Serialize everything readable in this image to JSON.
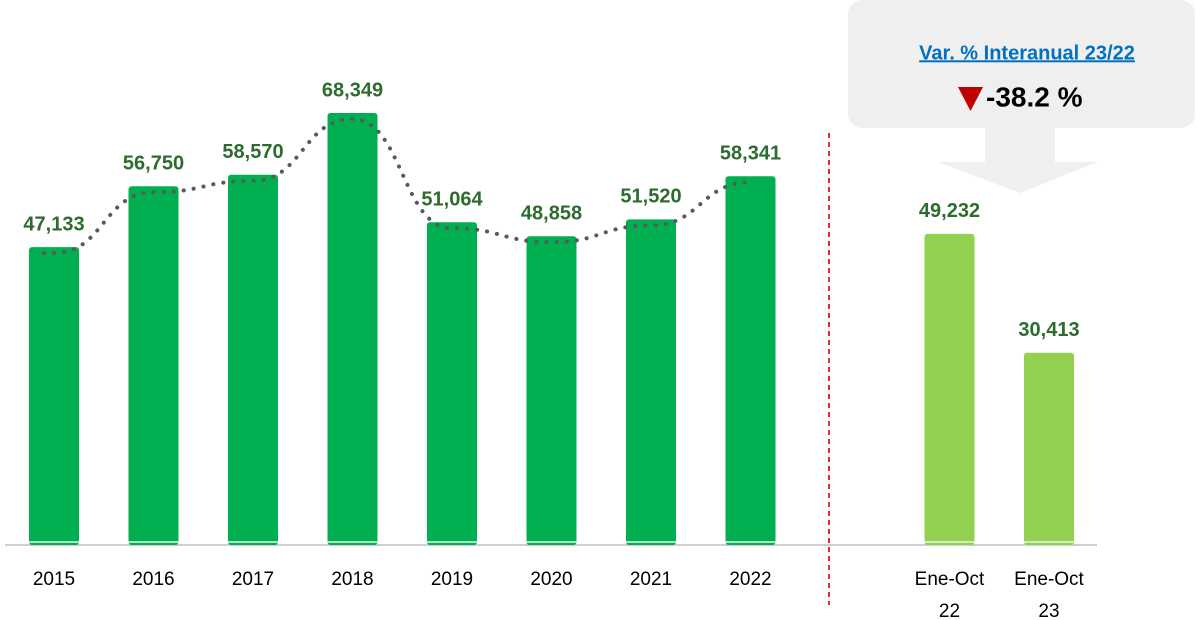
{
  "chart_data": {
    "type": "bar",
    "categories": [
      "2015",
      "2016",
      "2017",
      "2018",
      "2019",
      "2020",
      "2021",
      "2022",
      "Ene-Oct 22",
      "Ene-Oct 23"
    ],
    "values": [
      47133,
      56750,
      58570,
      68349,
      51064,
      48858,
      51520,
      58341,
      49232,
      30413
    ],
    "value_labels": [
      "47,133",
      "56,750",
      "58,570",
      "68,349",
      "51,064",
      "48,858",
      "51,520",
      "58,341",
      "49,232",
      "30,413"
    ],
    "colors": [
      "#00b050",
      "#00b050",
      "#00b050",
      "#00b050",
      "#00b050",
      "#00b050",
      "#00b050",
      "#00b050",
      "#92d050",
      "#92d050"
    ],
    "trend_line_color": "#595959",
    "change": {
      "label": "Var. % Interanual 23/22",
      "value": -38.2,
      "value_label": "-38.2 %"
    }
  }
}
